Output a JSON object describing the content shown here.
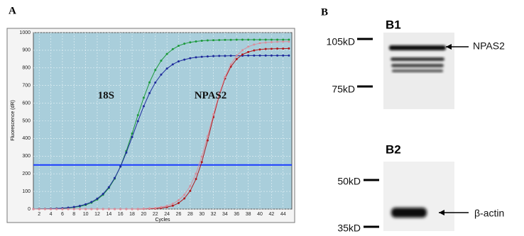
{
  "chart_data": {
    "type": "line",
    "panel": "A",
    "x_label": "Cycles",
    "y_label": "Fluorescence (dR)",
    "x": [
      1,
      2,
      3,
      4,
      5,
      6,
      7,
      8,
      9,
      10,
      11,
      12,
      13,
      14,
      15,
      16,
      17,
      18,
      19,
      20,
      21,
      22,
      23,
      24,
      25,
      26,
      27,
      28,
      29,
      30,
      31,
      32,
      33,
      34,
      35,
      36,
      37,
      38,
      39,
      40,
      41,
      42,
      43,
      44,
      45
    ],
    "series": [
      {
        "color": "#1c9a3c",
        "values": [
          0,
          1,
          1,
          2,
          3,
          4,
          6,
          10,
          15,
          23,
          36,
          54,
          81,
          119,
          172,
          242,
          329,
          428,
          532,
          631,
          718,
          788,
          841,
          879,
          906,
          925,
          937,
          945,
          950,
          954,
          956,
          957,
          958,
          959,
          959,
          960,
          960,
          960,
          960,
          960,
          960,
          960,
          960,
          960,
          960
        ]
      },
      {
        "color": "#1e2a9c",
        "values": [
          0,
          1,
          1,
          2,
          3,
          5,
          8,
          12,
          18,
          27,
          40,
          59,
          86,
          124,
          176,
          241,
          320,
          408,
          498,
          583,
          657,
          717,
          762,
          796,
          820,
          837,
          847,
          855,
          860,
          863,
          865,
          867,
          868,
          868,
          869,
          869,
          869,
          870,
          870,
          870,
          870,
          870,
          870,
          870,
          870
        ]
      },
      {
        "color": "#b0181c",
        "values": [
          0,
          0,
          0,
          0,
          0,
          0,
          0,
          0,
          0,
          0,
          0,
          0,
          0,
          0,
          0,
          0,
          0,
          0,
          0,
          1,
          2,
          3,
          6,
          11,
          19,
          34,
          60,
          103,
          170,
          266,
          389,
          521,
          644,
          740,
          807,
          850,
          876,
          890,
          899,
          904,
          907,
          908,
          909,
          909,
          910
        ]
      },
      {
        "color": "#d88e9c",
        "values": [
          0,
          0,
          0,
          0,
          0,
          0,
          0,
          0,
          0,
          0,
          0,
          0,
          0,
          0,
          0,
          0,
          0,
          0,
          1,
          2,
          4,
          6,
          11,
          18,
          30,
          50,
          81,
          130,
          201,
          297,
          413,
          537,
          653,
          749,
          820,
          869,
          900,
          920,
          932,
          940,
          944,
          946,
          948,
          949,
          949
        ]
      }
    ],
    "xlim": [
      1,
      45.5
    ],
    "ylim": [
      0,
      1000
    ],
    "xticks": [
      2,
      4,
      6,
      8,
      10,
      12,
      14,
      16,
      18,
      20,
      22,
      24,
      26,
      28,
      30,
      32,
      34,
      36,
      38,
      40,
      42,
      44
    ],
    "yticks": [
      0,
      100,
      200,
      300,
      400,
      500,
      600,
      700,
      800,
      900,
      1000
    ],
    "grid": true,
    "threshold": 250,
    "threshold_color": "#1a3cff",
    "background": "#a9cedb",
    "annotations": [
      {
        "text": "18S",
        "x": 13.5,
        "y": 640
      },
      {
        "text": "NPAS2",
        "x": 31.5,
        "y": 640
      }
    ]
  },
  "panel_b": {
    "label": "B",
    "blots": [
      {
        "title": "B1",
        "markers": [
          "105kD",
          "75kD"
        ],
        "target": "NPAS2"
      },
      {
        "title": "B2",
        "markers": [
          "50kD",
          "35kD"
        ],
        "target": "β-actin"
      }
    ]
  }
}
